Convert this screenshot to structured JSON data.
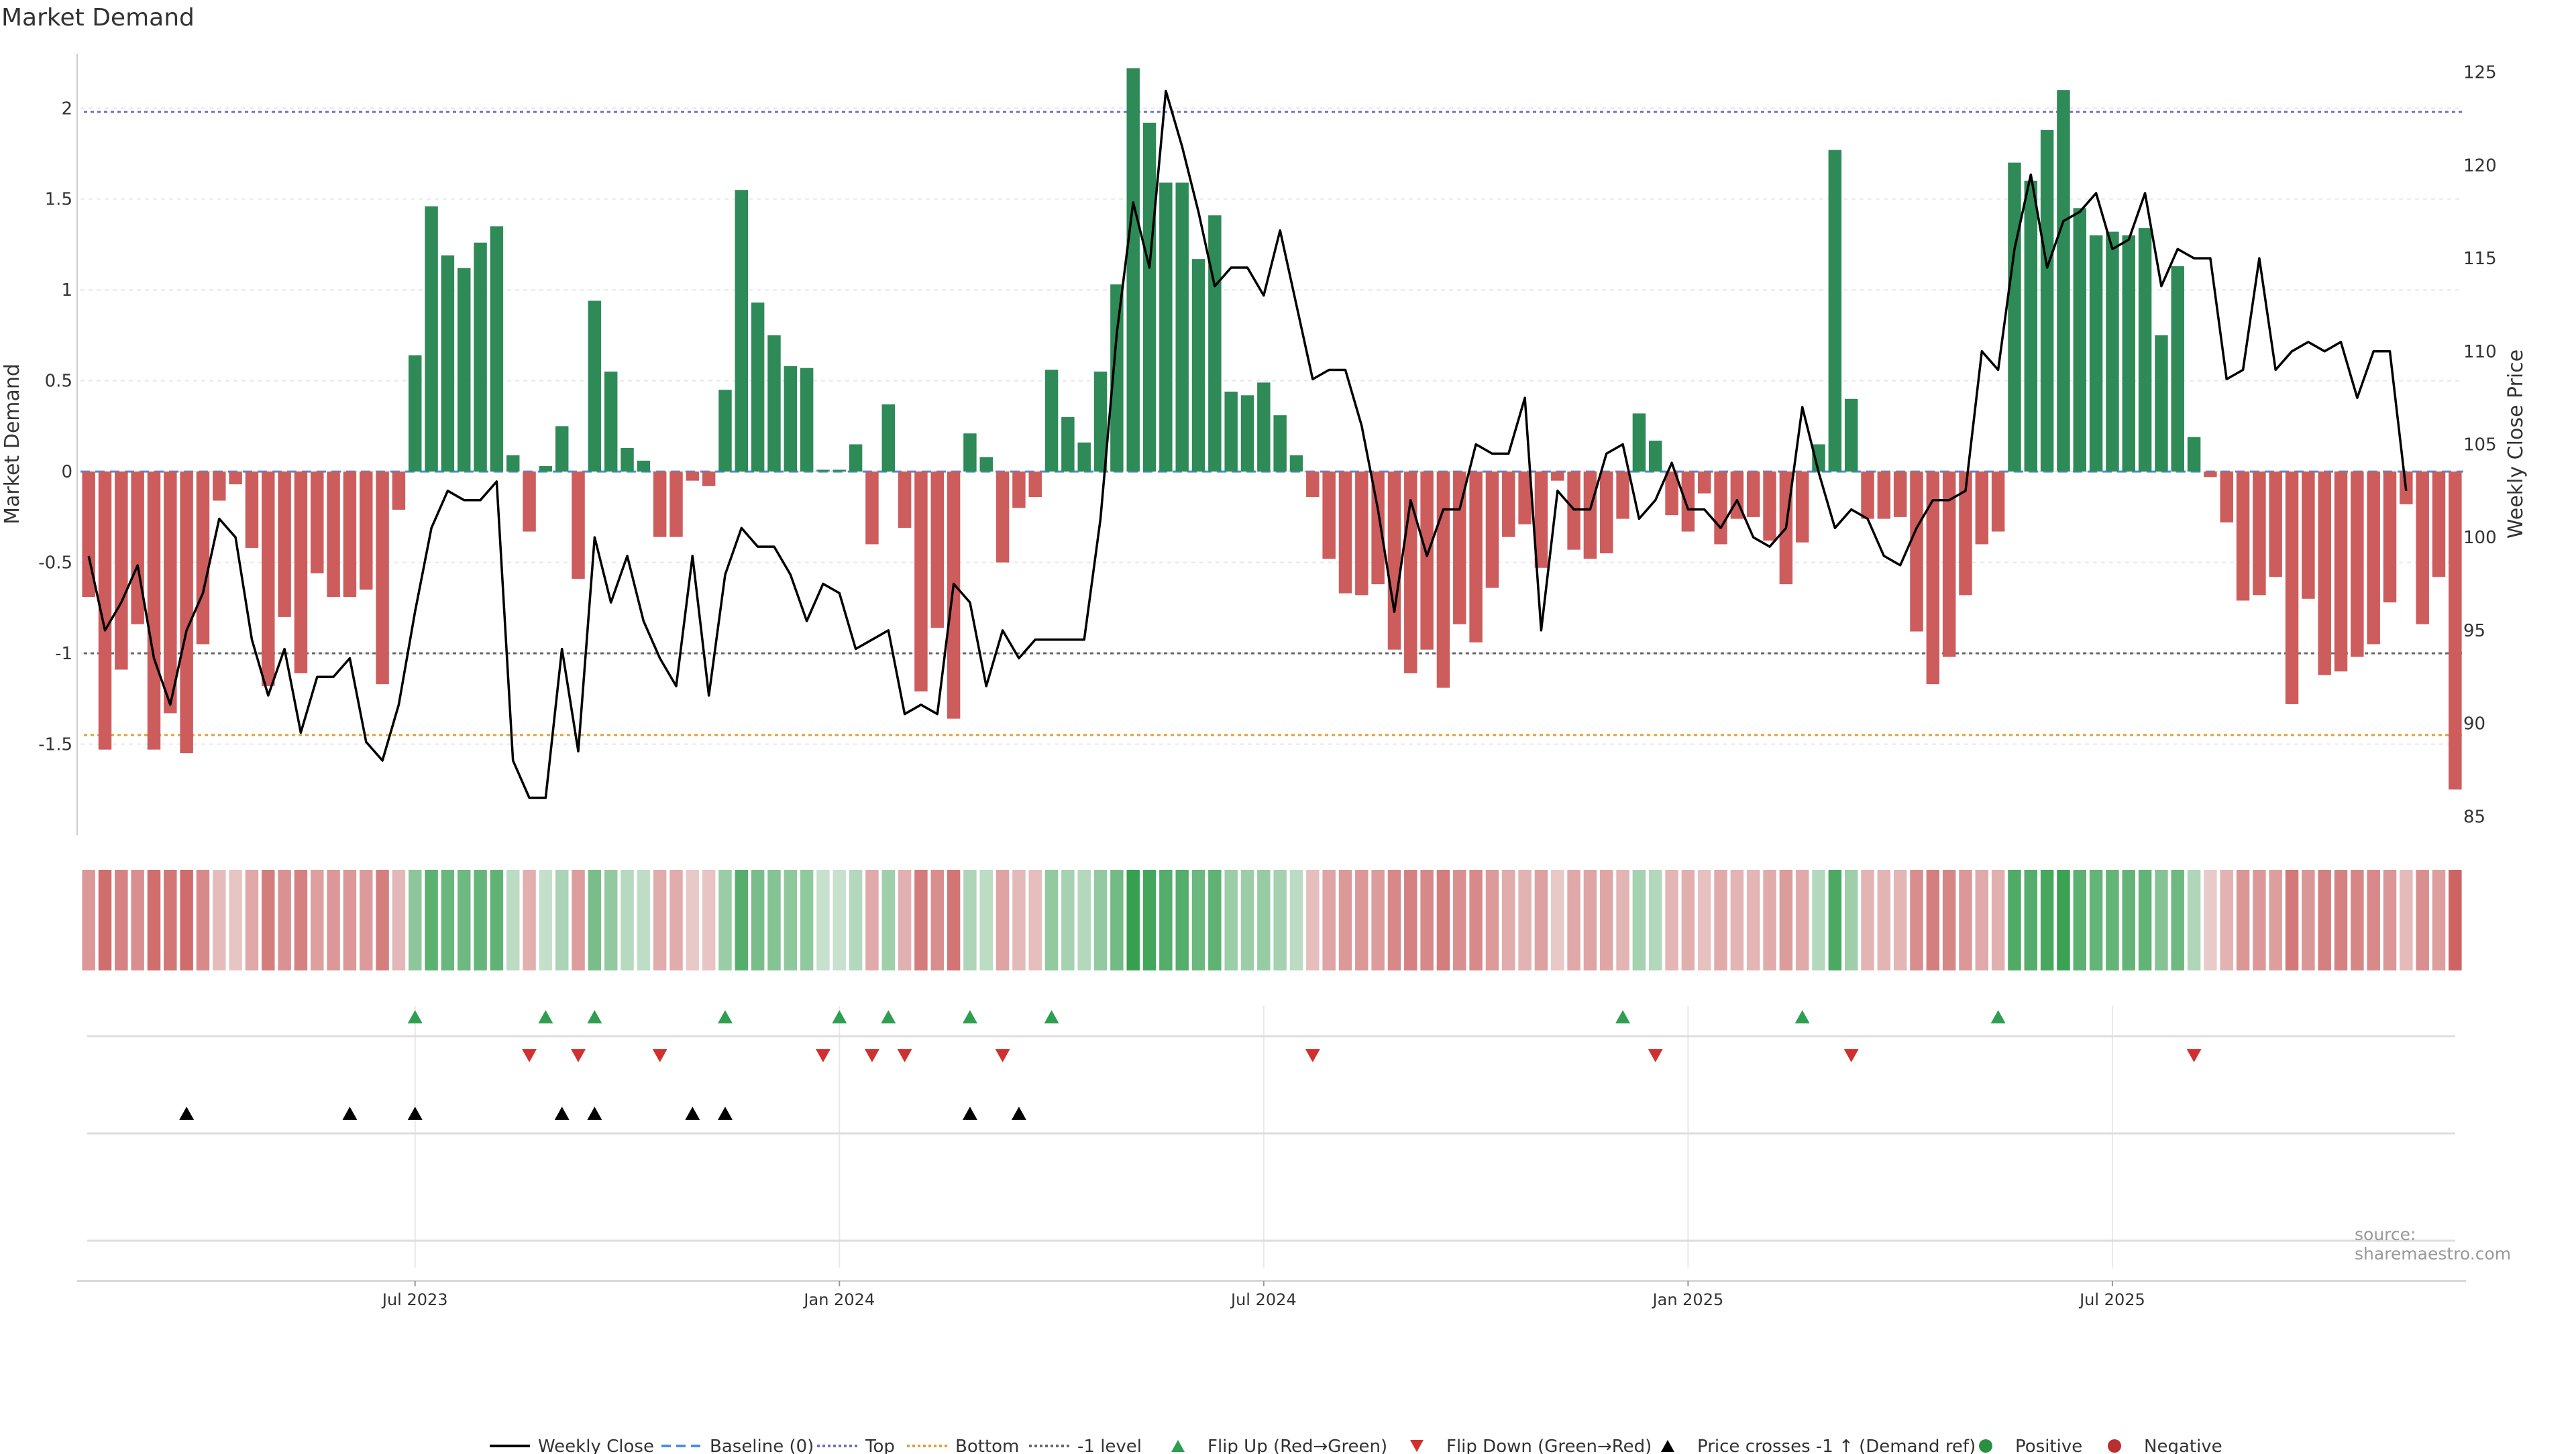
{
  "chart_data": {
    "type": "bar",
    "title": "Market Demand",
    "ylabel_left": "Market Demand",
    "ylabel_right": "Weekly Close Price",
    "source": "source: sharemaestro.com",
    "ylim_left": [
      -2.0,
      2.3
    ],
    "ylim_right": [
      84,
      126
    ],
    "left_ticks": [
      {
        "v": 2,
        "label": "2"
      },
      {
        "v": 1.5,
        "label": "1.5"
      },
      {
        "v": 1,
        "label": "1"
      },
      {
        "v": 0.5,
        "label": "0.5"
      },
      {
        "v": 0,
        "label": "0"
      },
      {
        "v": -0.5,
        "label": "-0.5"
      },
      {
        "v": -1,
        "label": "-1"
      },
      {
        "v": -1.5,
        "label": "-1.5"
      }
    ],
    "right_ticks": [
      {
        "v": 125,
        "label": "125"
      },
      {
        "v": 120,
        "label": "120"
      },
      {
        "v": 115,
        "label": "115"
      },
      {
        "v": 110,
        "label": "110"
      },
      {
        "v": 105,
        "label": "105"
      },
      {
        "v": 100,
        "label": "100"
      },
      {
        "v": 95,
        "label": "95"
      },
      {
        "v": 90,
        "label": "90"
      },
      {
        "v": 85,
        "label": "85"
      }
    ],
    "x_ticks": [
      {
        "week": 20,
        "label": "Jul 2023"
      },
      {
        "week": 46,
        "label": "Jan 2024"
      },
      {
        "week": 72,
        "label": "Jul 2024"
      },
      {
        "week": 98,
        "label": "Jan 2025"
      },
      {
        "week": 124,
        "label": "Jul 2025"
      }
    ],
    "levels": {
      "top": 1.98,
      "bottom": -1.45,
      "minus_one": -1.0,
      "baseline": 0
    },
    "demand": [
      -0.69,
      -1.53,
      -1.09,
      -0.84,
      -1.53,
      -1.33,
      -1.55,
      -0.95,
      -0.16,
      -0.07,
      -0.42,
      -1.18,
      -0.8,
      -1.11,
      -0.56,
      -0.69,
      -0.69,
      -0.65,
      -1.17,
      -0.21,
      0.64,
      1.46,
      1.19,
      1.12,
      1.26,
      1.35,
      0.09,
      -0.33,
      0.03,
      0.25,
      -0.59,
      0.94,
      0.55,
      0.13,
      0.06,
      -0.36,
      -0.36,
      -0.05,
      -0.08,
      0.45,
      1.55,
      0.93,
      0.75,
      0.58,
      0.57,
      0.01,
      0.01,
      0.15,
      -0.4,
      0.37,
      -0.31,
      -1.21,
      -0.86,
      -1.36,
      0.21,
      0.08,
      -0.5,
      -0.2,
      -0.14,
      0.56,
      0.3,
      0.16,
      0.55,
      1.03,
      2.22,
      1.92,
      1.59,
      1.59,
      1.17,
      1.41,
      0.44,
      0.42,
      0.49,
      0.31,
      0.09,
      -0.14,
      -0.48,
      -0.67,
      -0.68,
      -0.62,
      -0.98,
      -1.11,
      -0.98,
      -1.19,
      -0.84,
      -0.94,
      -0.64,
      -0.36,
      -0.29,
      -0.53,
      -0.05,
      -0.43,
      -0.48,
      -0.45,
      -0.26,
      0.32,
      0.17,
      -0.24,
      -0.33,
      -0.12,
      -0.4,
      -0.26,
      -0.25,
      -0.38,
      -0.62,
      -0.39,
      0.15,
      1.77,
      0.4,
      -0.26,
      -0.26,
      -0.25,
      -0.88,
      -1.17,
      -1.02,
      -0.68,
      -0.4,
      -0.33,
      1.7,
      1.6,
      1.88,
      2.1,
      1.45,
      1.3,
      1.32,
      1.3,
      1.34,
      0.75,
      1.13,
      0.19,
      -0.03,
      -0.28,
      -0.71,
      -0.68,
      -0.58,
      -1.28,
      -0.7,
      -1.12,
      -1.1,
      -1.02,
      -0.95,
      -0.72,
      -0.18,
      -0.84,
      -0.58,
      -1.75
    ],
    "weekly_close": [
      99.0,
      95.0,
      96.5,
      98.5,
      93.5,
      91.0,
      95.0,
      97.0,
      101.0,
      100.0,
      94.5,
      91.5,
      94.0,
      89.5,
      92.5,
      92.5,
      93.5,
      89.0,
      88.0,
      91.0,
      96.0,
      100.5,
      102.5,
      102.0,
      102.0,
      103.0,
      88.0,
      86.0,
      86.0,
      94.0,
      88.5,
      100.0,
      96.5,
      99.0,
      95.5,
      93.5,
      92.0,
      99.0,
      91.5,
      98.0,
      100.5,
      99.5,
      99.5,
      98.0,
      95.5,
      97.5,
      97.0,
      94.0,
      94.5,
      95.0,
      90.5,
      91.0,
      90.5,
      97.5,
      96.5,
      92.0,
      95.0,
      93.5,
      94.5,
      94.5,
      94.5,
      94.5,
      101.0,
      111.0,
      118.0,
      114.5,
      124.0,
      121.0,
      117.5,
      113.5,
      114.5,
      114.5,
      113.0,
      116.5,
      112.5,
      108.5,
      109.0,
      109.0,
      106.0,
      101.5,
      96.0,
      102.0,
      99.0,
      101.5,
      101.5,
      105.0,
      104.5,
      104.5,
      107.5,
      95.0,
      102.5,
      101.5,
      101.5,
      104.5,
      105.0,
      101.0,
      102.0,
      104.0,
      101.5,
      101.5,
      100.5,
      102.0,
      100.0,
      99.5,
      100.5,
      107.0,
      103.5,
      100.5,
      101.5,
      101.0,
      99.0,
      98.5,
      100.5,
      102.0,
      102.0,
      102.5,
      110.0,
      109.0,
      115.5,
      119.5,
      114.5,
      117.0,
      117.5,
      118.5,
      115.5,
      116.0,
      118.5,
      113.5,
      115.5,
      115.0,
      115.0,
      108.5,
      109.0,
      115.0,
      109.0,
      110.0,
      110.5,
      110.0,
      110.5,
      107.5,
      110.0,
      110.0,
      102.5
    ],
    "events": {
      "flip_up_weeks": [
        20,
        28,
        31,
        39,
        46,
        49,
        54,
        59,
        94,
        105,
        117
      ],
      "flip_down_weeks": [
        27,
        30,
        35,
        45,
        48,
        50,
        56,
        75,
        96,
        108,
        129
      ],
      "price_cross_weeks": [
        6,
        16,
        20,
        29,
        31,
        37,
        39,
        54,
        57
      ]
    },
    "legend": [
      {
        "label": "Weekly Close",
        "kind": "line",
        "color": "#000000",
        "dash": ""
      },
      {
        "label": "Baseline (0)",
        "kind": "line",
        "color": "#4a90d9",
        "dash": "14,8"
      },
      {
        "label": "Top",
        "kind": "line",
        "color": "#6f6fb8",
        "dash": "4,4"
      },
      {
        "label": "Bottom",
        "kind": "line",
        "color": "#e0a030",
        "dash": "4,4"
      },
      {
        "label": "-1 level",
        "kind": "line",
        "color": "#666666",
        "dash": "4,4"
      },
      {
        "label": "Flip Up (Red→Green)",
        "kind": "tri-up",
        "color": "#2e9e50"
      },
      {
        "label": "Flip Down (Green→Red)",
        "kind": "tri-down",
        "color": "#d03030"
      },
      {
        "label": "Price crosses -1 ↑ (Demand ref)",
        "kind": "tri-up",
        "color": "#000000"
      },
      {
        "label": "Positive",
        "kind": "dot",
        "color": "#2a9040"
      },
      {
        "label": "Negative",
        "kind": "dot",
        "color": "#b83030"
      }
    ],
    "colors": {
      "positive": "#2e8a57",
      "negative": "#cd5c5c",
      "price": "#000000"
    }
  }
}
